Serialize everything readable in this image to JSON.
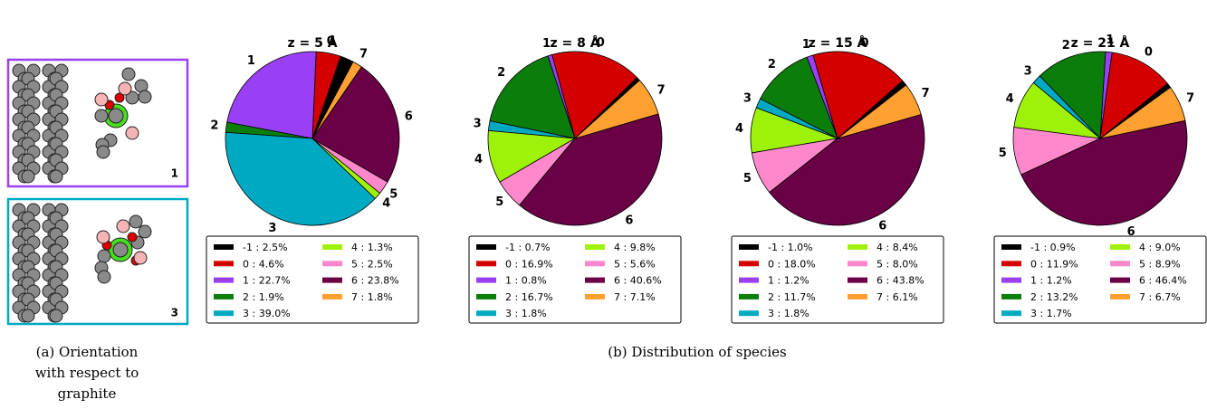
{
  "chart_data": [
    {
      "type": "pie",
      "title": "z = 5 Å",
      "startangle": 62,
      "categories": [
        "-1",
        "0",
        "1",
        "2",
        "3",
        "4",
        "5",
        "6",
        "7"
      ],
      "pie_labels": [
        null,
        "0",
        "1",
        "2",
        "3",
        "4",
        "5",
        "6",
        "7"
      ],
      "values": [
        2.5,
        4.6,
        22.7,
        1.9,
        39.0,
        1.3,
        2.5,
        23.8,
        1.8
      ],
      "value_labels": [
        "-1 : 2.5%",
        "0 : 4.6%",
        "1 : 22.7%",
        "2 : 1.9%",
        "3 : 39.0%",
        "4 : 1.3%",
        "5 : 2.5%",
        "6 : 23.8%",
        "7 : 1.8%"
      ],
      "colors": [
        "#000000",
        "#d40000",
        "#9940f5",
        "#0b7d0b",
        "#00a9c2",
        "#9ef20a",
        "#ff88cc",
        "#6a0045",
        "#ffa030"
      ]
    },
    {
      "type": "pie",
      "title": "z = 8 Å",
      "startangle": 42,
      "categories": [
        "-1",
        "0",
        "1",
        "2",
        "3",
        "4",
        "5",
        "6",
        "7"
      ],
      "pie_labels": [
        null,
        "0",
        "1",
        "2",
        "3",
        "4",
        "5",
        "6",
        "7"
      ],
      "values": [
        0.7,
        16.9,
        0.8,
        16.7,
        1.8,
        9.8,
        5.6,
        40.6,
        7.1
      ],
      "value_labels": [
        "-1 : 0.7%",
        "0 : 16.9%",
        "1 : 0.8%",
        "2 : 16.7%",
        "3 : 1.8%",
        "4 : 9.8%",
        "5 : 5.6%",
        "6 : 40.6%",
        "7 : 7.1%"
      ],
      "colors": [
        "#000000",
        "#d40000",
        "#9940f5",
        "#0b7d0b",
        "#00a9c2",
        "#9ef20a",
        "#ff88cc",
        "#6a0045",
        "#ffa030"
      ]
    },
    {
      "type": "pie",
      "title": "z = 15 Å",
      "startangle": 38,
      "categories": [
        "-1",
        "0",
        "1",
        "2",
        "3",
        "4",
        "5",
        "6",
        "7"
      ],
      "pie_labels": [
        null,
        "0",
        "1",
        "2",
        "3",
        "4",
        "5",
        "6",
        "7"
      ],
      "values": [
        1.0,
        18.0,
        1.2,
        11.7,
        1.8,
        8.4,
        8.0,
        43.8,
        6.1
      ],
      "value_labels": [
        "-1 : 1.0%",
        "0 : 18.0%",
        "1 : 1.2%",
        "2 : 11.7%",
        "3 : 1.8%",
        "4 : 8.4%",
        "5 : 8.0%",
        "6 : 43.8%",
        "7 : 6.1%"
      ],
      "colors": [
        "#000000",
        "#d40000",
        "#9940f5",
        "#0b7d0b",
        "#00a9c2",
        "#9ef20a",
        "#ff88cc",
        "#6a0045",
        "#ffa030"
      ]
    },
    {
      "type": "pie",
      "title": "z = 21 Å",
      "startangle": 36,
      "categories": [
        "-1",
        "0",
        "1",
        "2",
        "3",
        "4",
        "5",
        "6",
        "7"
      ],
      "pie_labels": [
        null,
        "0",
        "1",
        "2",
        "3",
        "4",
        "5",
        "6",
        "7"
      ],
      "values": [
        0.9,
        11.9,
        1.2,
        13.2,
        1.7,
        9.0,
        8.9,
        46.4,
        6.7
      ],
      "value_labels": [
        "-1 : 0.9%",
        "0 : 11.9%",
        "1 : 1.2%",
        "2 : 13.2%",
        "3 : 1.7%",
        "4 : 9.0%",
        "5 : 8.9%",
        "6 : 46.4%",
        "7 : 6.7%"
      ],
      "colors": [
        "#000000",
        "#d40000",
        "#9940f5",
        "#0b7d0b",
        "#00a9c2",
        "#9ef20a",
        "#ff88cc",
        "#6a0045",
        "#ffa030"
      ]
    }
  ],
  "panel_labels": [
    "1",
    "3"
  ],
  "caption_a": [
    "(a) Orientation",
    "with respect to",
    "graphite"
  ],
  "caption_b": "(b) Distribution of species"
}
